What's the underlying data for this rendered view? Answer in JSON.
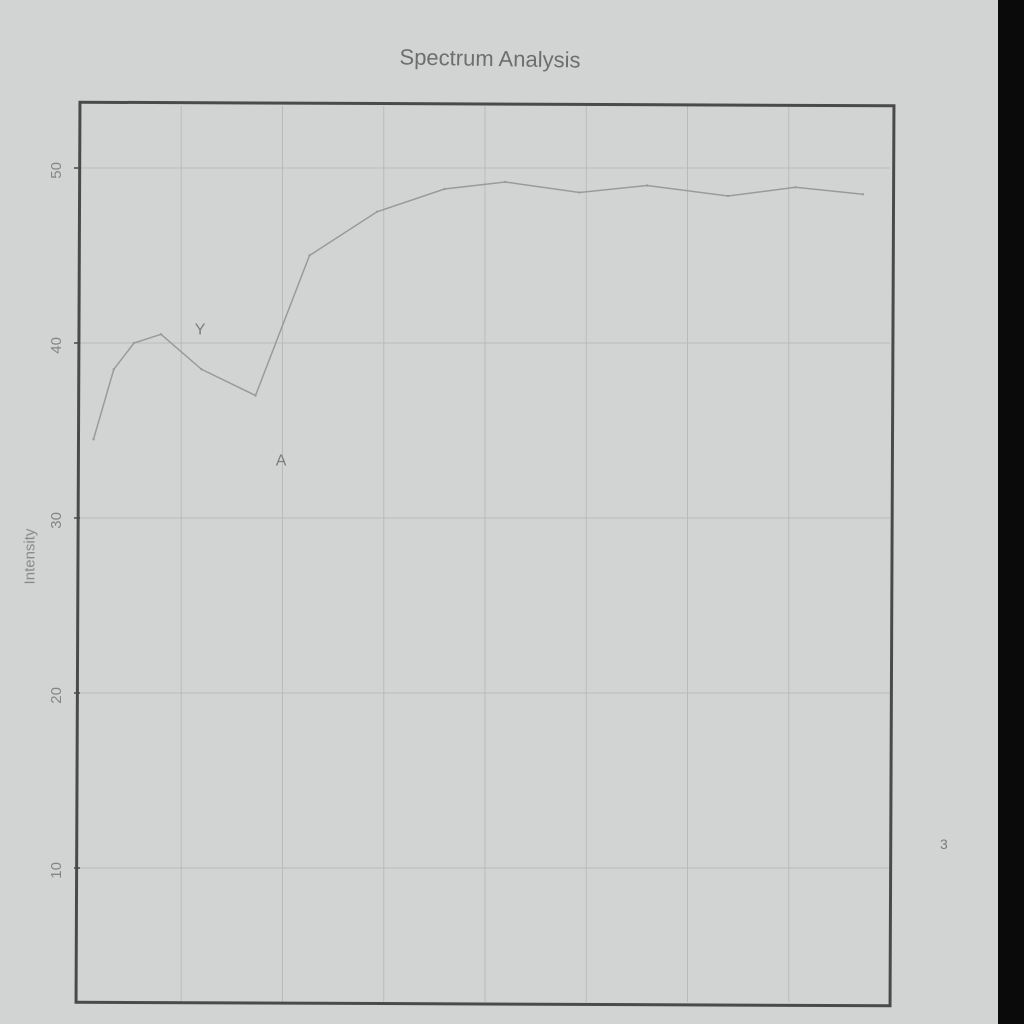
{
  "chart_data": {
    "type": "line",
    "title": "Spectrum Analysis",
    "xlabel": "",
    "ylabel": "Intensity",
    "ylim": [
      0,
      50
    ],
    "ytick_labels": [
      "10",
      "20",
      "30",
      "40",
      "50"
    ],
    "grid": true,
    "series": [
      {
        "color": "#9a9a9a",
        "x": [
          0.2,
          0.5,
          0.8,
          1.2,
          1.8,
          2.6,
          3.4,
          4.4,
          5.4,
          6.3,
          7.4,
          8.4,
          9.6,
          10.6,
          11.6
        ],
        "values": [
          34.5,
          38.5,
          40.0,
          40.5,
          38.5,
          37.0,
          45.0,
          47.5,
          48.8,
          49.2,
          48.6,
          49.0,
          48.4,
          48.9,
          48.5
        ]
      }
    ],
    "annotations": [
      {
        "text": "Y",
        "x": 1.7,
        "y": 40.5
      },
      {
        "text": "A",
        "x": 2.9,
        "y": 33.0
      }
    ]
  },
  "page_number": "3",
  "colors": {
    "background": "#d2d4d3",
    "frame": "#4a4a4a",
    "grid": "#b9bbba",
    "line": "#9a9a9a"
  }
}
